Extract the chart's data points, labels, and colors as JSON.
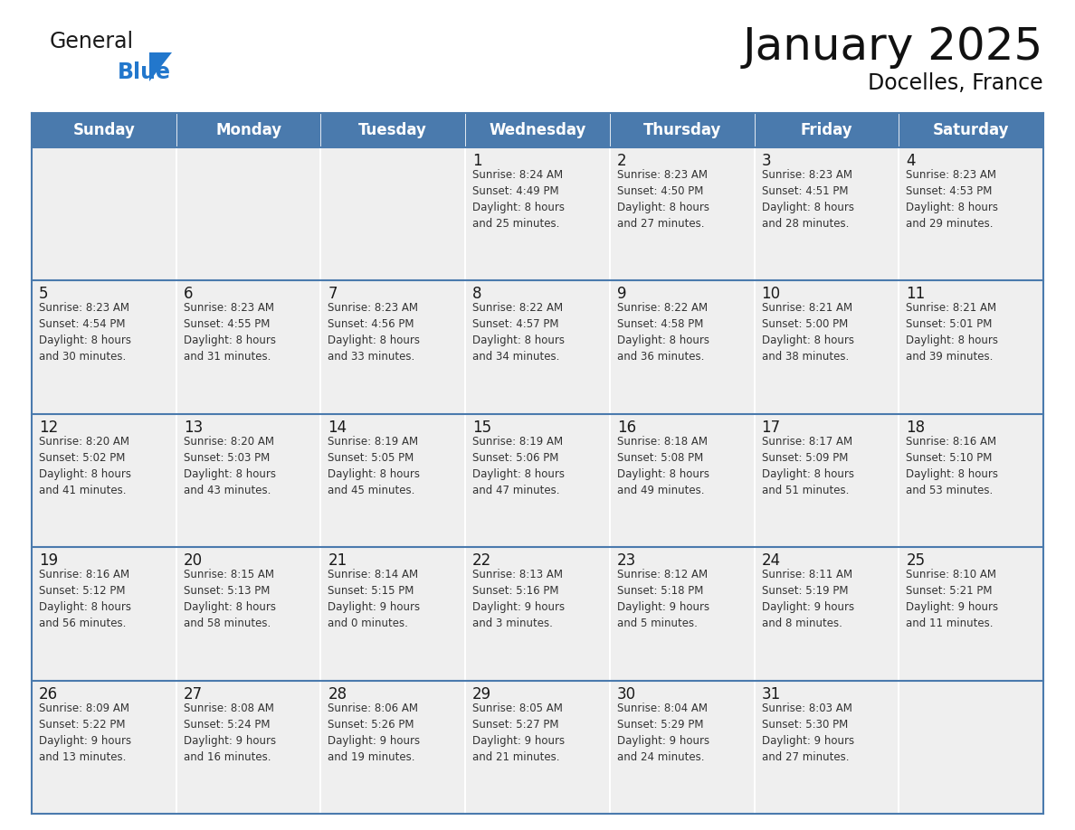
{
  "title": "January 2025",
  "subtitle": "Docelles, France",
  "days_of_week": [
    "Sunday",
    "Monday",
    "Tuesday",
    "Wednesday",
    "Thursday",
    "Friday",
    "Saturday"
  ],
  "header_bg": "#4a7aad",
  "header_text": "#ffffff",
  "cell_bg": "#efefef",
  "cell_border": "#4a7aad",
  "day_number_color": "#1a1a1a",
  "text_color": "#333333",
  "logo_general_color": "#1a1a1a",
  "logo_blue_color": "#2277cc",
  "weeks": [
    [
      {
        "day": null,
        "info": ""
      },
      {
        "day": null,
        "info": ""
      },
      {
        "day": null,
        "info": ""
      },
      {
        "day": 1,
        "info": "Sunrise: 8:24 AM\nSunset: 4:49 PM\nDaylight: 8 hours\nand 25 minutes."
      },
      {
        "day": 2,
        "info": "Sunrise: 8:23 AM\nSunset: 4:50 PM\nDaylight: 8 hours\nand 27 minutes."
      },
      {
        "day": 3,
        "info": "Sunrise: 8:23 AM\nSunset: 4:51 PM\nDaylight: 8 hours\nand 28 minutes."
      },
      {
        "day": 4,
        "info": "Sunrise: 8:23 AM\nSunset: 4:53 PM\nDaylight: 8 hours\nand 29 minutes."
      }
    ],
    [
      {
        "day": 5,
        "info": "Sunrise: 8:23 AM\nSunset: 4:54 PM\nDaylight: 8 hours\nand 30 minutes."
      },
      {
        "day": 6,
        "info": "Sunrise: 8:23 AM\nSunset: 4:55 PM\nDaylight: 8 hours\nand 31 minutes."
      },
      {
        "day": 7,
        "info": "Sunrise: 8:23 AM\nSunset: 4:56 PM\nDaylight: 8 hours\nand 33 minutes."
      },
      {
        "day": 8,
        "info": "Sunrise: 8:22 AM\nSunset: 4:57 PM\nDaylight: 8 hours\nand 34 minutes."
      },
      {
        "day": 9,
        "info": "Sunrise: 8:22 AM\nSunset: 4:58 PM\nDaylight: 8 hours\nand 36 minutes."
      },
      {
        "day": 10,
        "info": "Sunrise: 8:21 AM\nSunset: 5:00 PM\nDaylight: 8 hours\nand 38 minutes."
      },
      {
        "day": 11,
        "info": "Sunrise: 8:21 AM\nSunset: 5:01 PM\nDaylight: 8 hours\nand 39 minutes."
      }
    ],
    [
      {
        "day": 12,
        "info": "Sunrise: 8:20 AM\nSunset: 5:02 PM\nDaylight: 8 hours\nand 41 minutes."
      },
      {
        "day": 13,
        "info": "Sunrise: 8:20 AM\nSunset: 5:03 PM\nDaylight: 8 hours\nand 43 minutes."
      },
      {
        "day": 14,
        "info": "Sunrise: 8:19 AM\nSunset: 5:05 PM\nDaylight: 8 hours\nand 45 minutes."
      },
      {
        "day": 15,
        "info": "Sunrise: 8:19 AM\nSunset: 5:06 PM\nDaylight: 8 hours\nand 47 minutes."
      },
      {
        "day": 16,
        "info": "Sunrise: 8:18 AM\nSunset: 5:08 PM\nDaylight: 8 hours\nand 49 minutes."
      },
      {
        "day": 17,
        "info": "Sunrise: 8:17 AM\nSunset: 5:09 PM\nDaylight: 8 hours\nand 51 minutes."
      },
      {
        "day": 18,
        "info": "Sunrise: 8:16 AM\nSunset: 5:10 PM\nDaylight: 8 hours\nand 53 minutes."
      }
    ],
    [
      {
        "day": 19,
        "info": "Sunrise: 8:16 AM\nSunset: 5:12 PM\nDaylight: 8 hours\nand 56 minutes."
      },
      {
        "day": 20,
        "info": "Sunrise: 8:15 AM\nSunset: 5:13 PM\nDaylight: 8 hours\nand 58 minutes."
      },
      {
        "day": 21,
        "info": "Sunrise: 8:14 AM\nSunset: 5:15 PM\nDaylight: 9 hours\nand 0 minutes."
      },
      {
        "day": 22,
        "info": "Sunrise: 8:13 AM\nSunset: 5:16 PM\nDaylight: 9 hours\nand 3 minutes."
      },
      {
        "day": 23,
        "info": "Sunrise: 8:12 AM\nSunset: 5:18 PM\nDaylight: 9 hours\nand 5 minutes."
      },
      {
        "day": 24,
        "info": "Sunrise: 8:11 AM\nSunset: 5:19 PM\nDaylight: 9 hours\nand 8 minutes."
      },
      {
        "day": 25,
        "info": "Sunrise: 8:10 AM\nSunset: 5:21 PM\nDaylight: 9 hours\nand 11 minutes."
      }
    ],
    [
      {
        "day": 26,
        "info": "Sunrise: 8:09 AM\nSunset: 5:22 PM\nDaylight: 9 hours\nand 13 minutes."
      },
      {
        "day": 27,
        "info": "Sunrise: 8:08 AM\nSunset: 5:24 PM\nDaylight: 9 hours\nand 16 minutes."
      },
      {
        "day": 28,
        "info": "Sunrise: 8:06 AM\nSunset: 5:26 PM\nDaylight: 9 hours\nand 19 minutes."
      },
      {
        "day": 29,
        "info": "Sunrise: 8:05 AM\nSunset: 5:27 PM\nDaylight: 9 hours\nand 21 minutes."
      },
      {
        "day": 30,
        "info": "Sunrise: 8:04 AM\nSunset: 5:29 PM\nDaylight: 9 hours\nand 24 minutes."
      },
      {
        "day": 31,
        "info": "Sunrise: 8:03 AM\nSunset: 5:30 PM\nDaylight: 9 hours\nand 27 minutes."
      },
      {
        "day": null,
        "info": ""
      }
    ]
  ]
}
